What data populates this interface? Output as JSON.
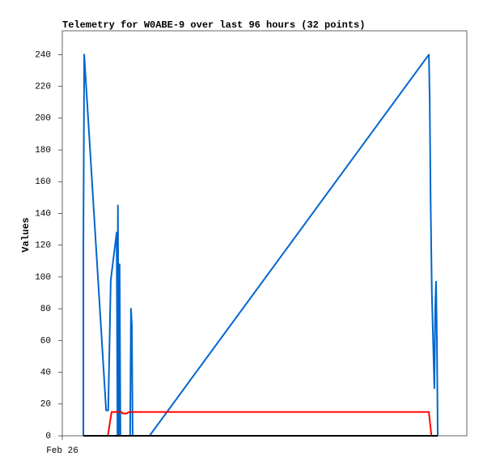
{
  "chart_data": {
    "type": "line",
    "title": "Telemetry for W0ABE-9 over last 96 hours (32 points)",
    "y_label": "Values",
    "xlim": [
      0,
      96
    ],
    "xticks": [
      {
        "value": 0,
        "label": "Feb 26"
      }
    ],
    "ylim": [
      0,
      255
    ],
    "yticks": [
      0,
      20,
      40,
      60,
      80,
      100,
      120,
      140,
      160,
      180,
      200,
      220,
      240
    ],
    "grid": false,
    "series": [
      {
        "color": "#0066cc",
        "x": [
          5.0,
          5.0,
          5.2,
          10.4,
          10.9,
          11.5,
          12.9,
          13.1,
          13.2,
          13.4,
          13.6,
          13.8,
          16.1,
          16.3,
          16.5,
          16.7,
          20.7,
          87.0,
          87.2,
          87.4,
          87.7,
          88.3,
          88.5,
          88.7,
          88.9,
          89.1
        ],
        "values": [
          0,
          120,
          240,
          16,
          16,
          98,
          128,
          0,
          145,
          0,
          108,
          0,
          0,
          80,
          70,
          0,
          0,
          240,
          210,
          150,
          90,
          30,
          80,
          97,
          60,
          0
        ]
      },
      {
        "color": "#ff0000",
        "x": [
          10.8,
          11.7,
          14.0,
          14.4,
          15.2,
          15.9,
          87.0,
          87.6
        ],
        "values": [
          0,
          15,
          15,
          14,
          14,
          15,
          15,
          0
        ]
      },
      {
        "color": "#000000",
        "x": [
          5.0,
          89.1
        ],
        "values": [
          0,
          0
        ]
      }
    ]
  }
}
